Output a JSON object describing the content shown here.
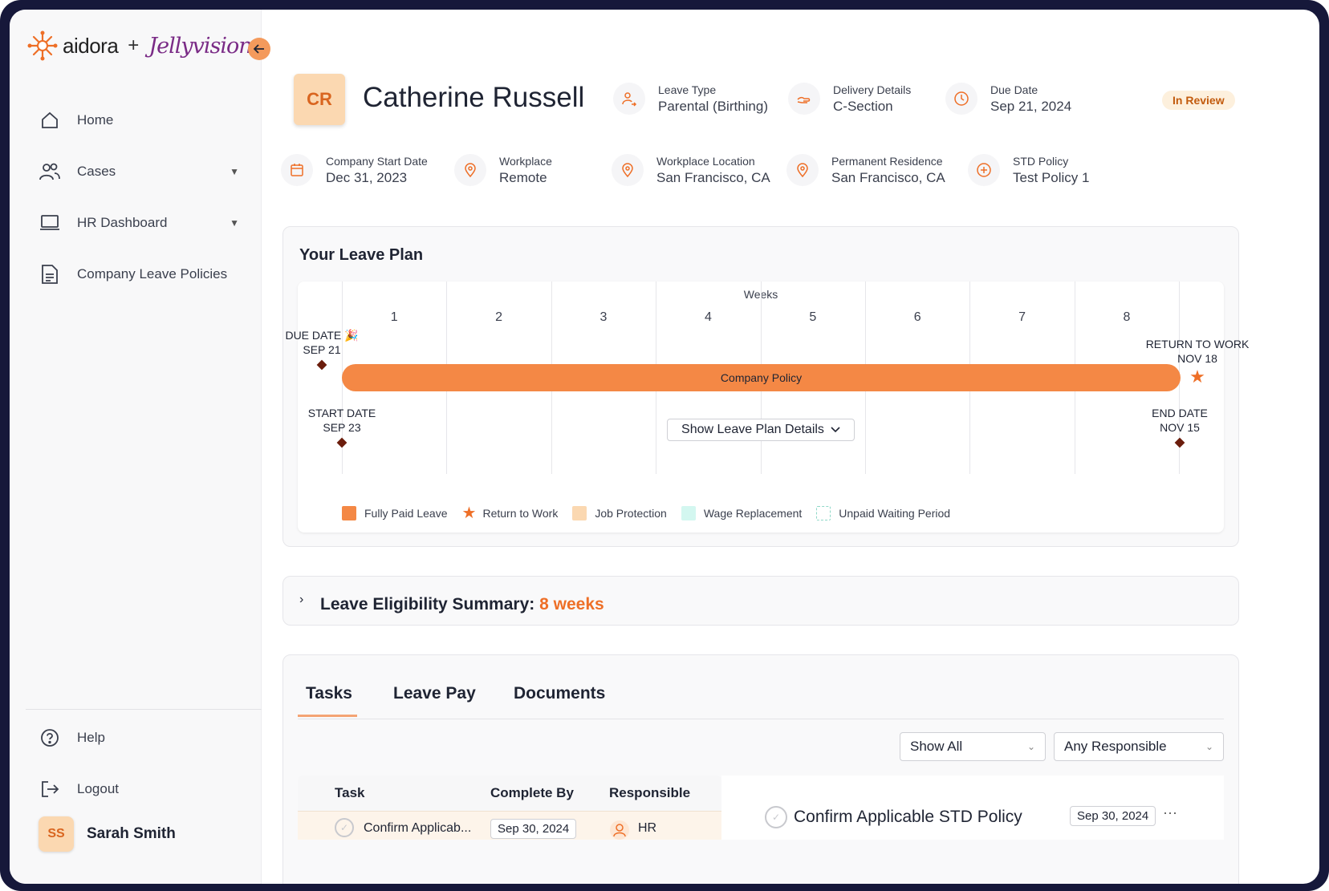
{
  "brand": {
    "name": "aidora",
    "plus": "+",
    "partner": "Jellyvision"
  },
  "sidebar": {
    "items": [
      {
        "label": "Home",
        "icon": "home-icon"
      },
      {
        "label": "Cases",
        "icon": "users-icon",
        "has_chevron": true
      },
      {
        "label": "HR Dashboard",
        "icon": "laptop-icon",
        "has_chevron": true
      },
      {
        "label": "Company Leave Policies",
        "icon": "document-icon"
      }
    ],
    "bottom": [
      {
        "label": "Help",
        "icon": "help-icon"
      },
      {
        "label": "Logout",
        "icon": "logout-icon"
      }
    ],
    "user": {
      "initials": "SS",
      "name": "Sarah Smith"
    }
  },
  "employee": {
    "initials": "CR",
    "name": "Catherine Russell",
    "status": "In Review",
    "fields": {
      "leave_type": {
        "label": "Leave Type",
        "value": "Parental (Birthing)"
      },
      "delivery": {
        "label": "Delivery Details",
        "value": "C-Section"
      },
      "due_date": {
        "label": "Due Date",
        "value": "Sep 21, 2024"
      },
      "start_date": {
        "label": "Company Start Date",
        "value": "Dec 31, 2023"
      },
      "workplace": {
        "label": "Workplace",
        "value": "Remote"
      },
      "workplace_location": {
        "label": "Workplace Location",
        "value": "San Francisco, CA"
      },
      "residence": {
        "label": "Permanent Residence",
        "value": "San Francisco, CA"
      },
      "std_policy": {
        "label": "STD Policy",
        "value": "Test Policy 1"
      }
    }
  },
  "leave_plan": {
    "title": "Your Leave Plan",
    "weeks_label": "Weeks",
    "weeks": [
      "1",
      "2",
      "3",
      "4",
      "5",
      "6",
      "7",
      "8"
    ],
    "bar_label": "Company Policy",
    "markers": {
      "due": {
        "line1": "DUE DATE 🎉",
        "line2": "SEP 21"
      },
      "start": {
        "line1": "START DATE",
        "line2": "SEP 23"
      },
      "return": {
        "line1": "RETURN TO WORK",
        "line2": "NOV 18"
      },
      "end": {
        "line1": "END DATE",
        "line2": "NOV 15"
      }
    },
    "details_button": "Show Leave Plan Details",
    "legend": [
      {
        "label": "Fully Paid Leave",
        "color": "#f48845"
      },
      {
        "label": "Return to Work",
        "color": "#ee6f27"
      },
      {
        "label": "Job Protection",
        "color": "#fbd8b1"
      },
      {
        "label": "Wage Replacement",
        "color": "#d3f7f0"
      },
      {
        "label": "Unpaid Waiting Period",
        "color": "#8fd8c8"
      }
    ]
  },
  "eligibility": {
    "label": "Leave Eligibility Summary:",
    "value": "8 weeks"
  },
  "tasks": {
    "tabs": [
      "Tasks",
      "Leave Pay",
      "Documents"
    ],
    "filters": {
      "status": "Show All",
      "responsible": "Any Responsible"
    },
    "columns": [
      "Task",
      "Complete By",
      "Responsible"
    ],
    "rows": [
      {
        "task": "Confirm Applicab...",
        "complete_by": "Sep 30, 2024",
        "responsible": "HR"
      }
    ],
    "detail": {
      "title": "Confirm Applicable STD Policy",
      "date": "Sep 30, 2024",
      "more": "···"
    }
  },
  "colors": {
    "accent": "#ee6f27",
    "bar": "#f48845",
    "avatar_bg": "#fbd8b1",
    "badge_bg": "#fdf0dd"
  }
}
